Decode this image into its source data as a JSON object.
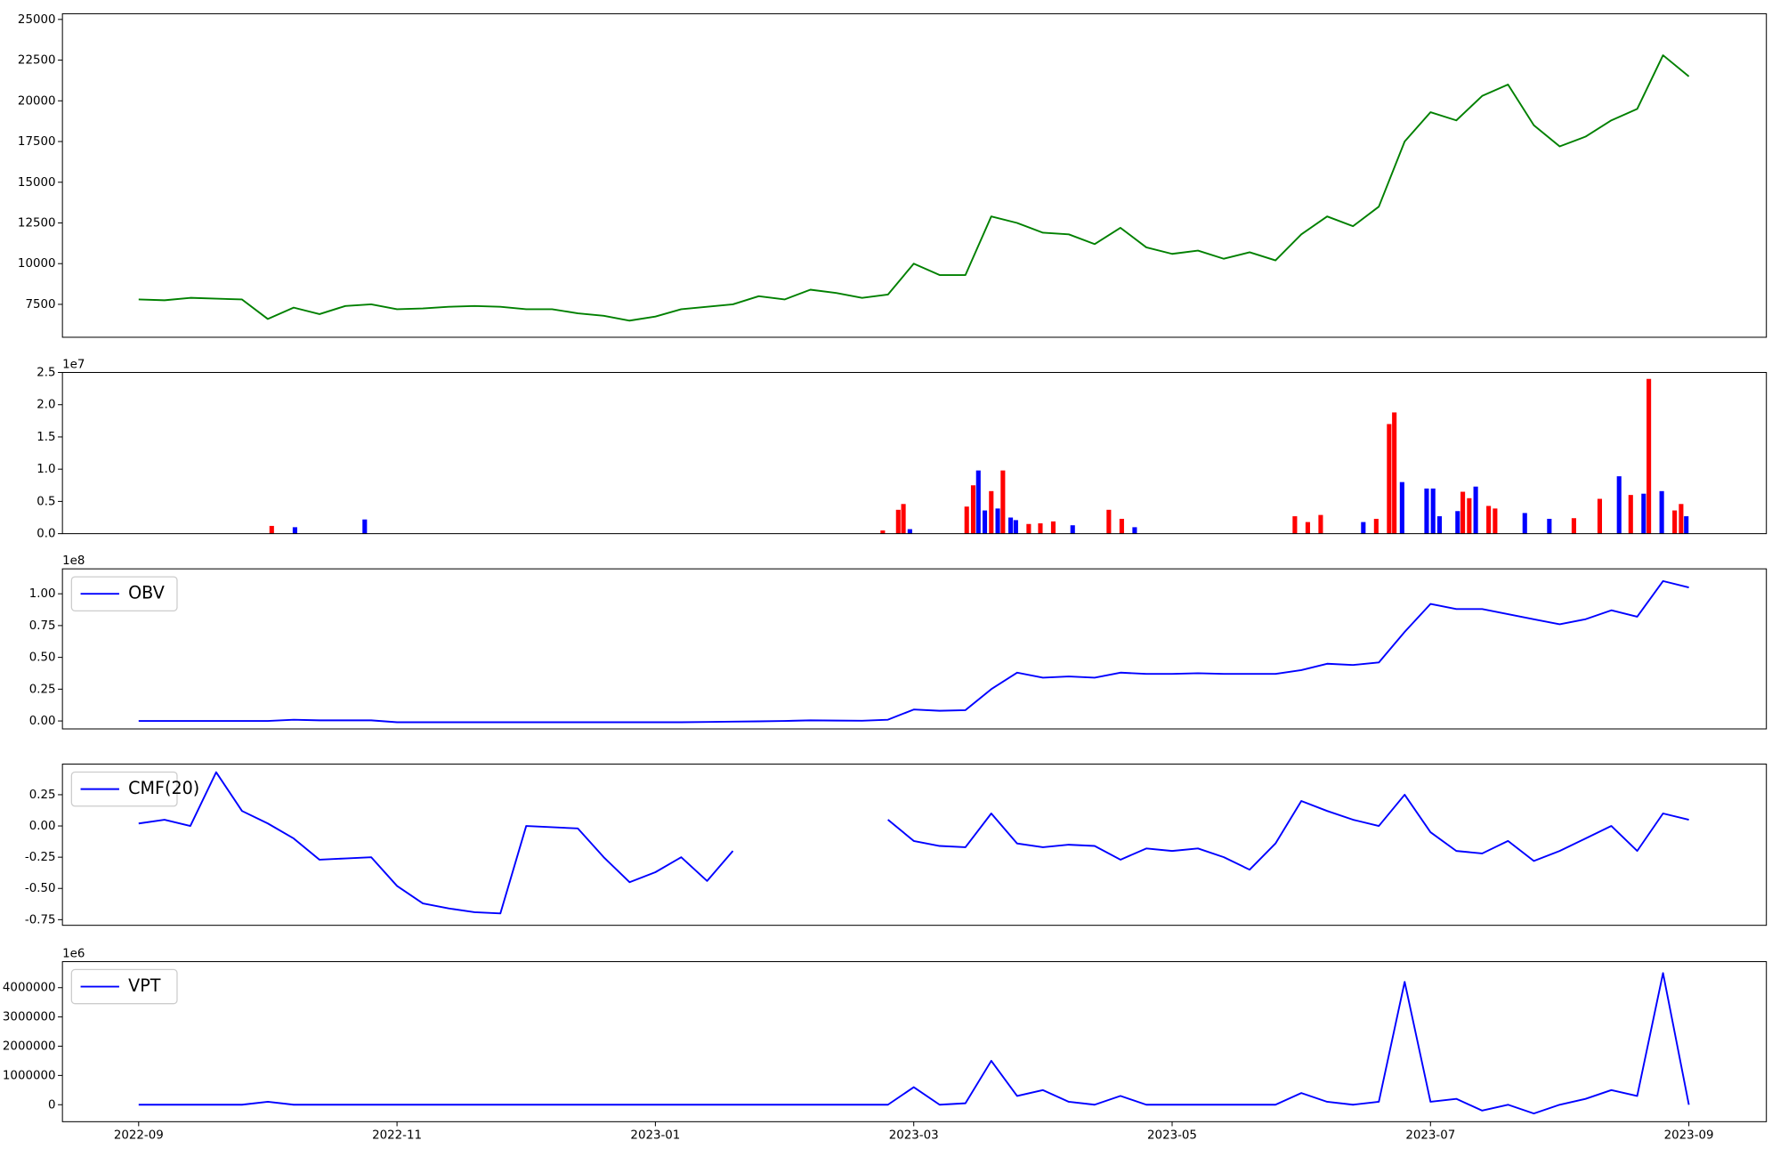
{
  "chart_data": [
    {
      "type": "line",
      "color": "#008000",
      "x": [
        0,
        0.2,
        0.4,
        0.6,
        0.8,
        1,
        1.2,
        1.4,
        1.6,
        1.8,
        2,
        2.2,
        2.4,
        2.6,
        2.8,
        3,
        3.2,
        3.4,
        3.6,
        3.8,
        4,
        4.2,
        4.4,
        4.6,
        4.8,
        5,
        5.2,
        5.4,
        5.6,
        5.8,
        6,
        6.2,
        6.4,
        6.6,
        6.8,
        7,
        7.2,
        7.4,
        7.6,
        7.8,
        8,
        8.2,
        8.4,
        8.6,
        8.8,
        9,
        9.2,
        9.4,
        9.6,
        9.8,
        10,
        10.2,
        10.4,
        10.6,
        10.8,
        11,
        11.2,
        11.4,
        11.6,
        11.8,
        12
      ],
      "series": [
        {
          "color": "#008000",
          "values": [
            7800,
            7750,
            7900,
            7850,
            7800,
            6600,
            7300,
            6900,
            7400,
            7500,
            7200,
            7250,
            7350,
            7400,
            7350,
            7200,
            7200,
            6950,
            6800,
            6500,
            6750,
            7200,
            7350,
            7500,
            8000,
            7800,
            8400,
            8200,
            7900,
            8100,
            10000,
            9300,
            9300,
            12900,
            12500,
            11900,
            11800,
            11200,
            12200,
            11000,
            10600,
            10800,
            10300,
            10700,
            10200,
            11800,
            12900,
            12300,
            13500,
            17500,
            19300,
            18800,
            20300,
            21000,
            18500,
            17200,
            17800,
            18800,
            19500,
            22800,
            21500
          ]
        }
      ],
      "xlim": [
        -0.59,
        12.6
      ],
      "ylim": [
        5478,
        25349
      ],
      "yticks": [
        7500,
        10000,
        12500,
        15000,
        17500,
        20000,
        22500,
        25000
      ]
    },
    {
      "type": "bar",
      "x": [
        1.03,
        1.21,
        1.75,
        5.76,
        5.88,
        5.92,
        5.97,
        6.41,
        6.46,
        6.5,
        6.55,
        6.6,
        6.65,
        6.69,
        6.75,
        6.79,
        6.89,
        6.98,
        7.08,
        7.23,
        7.51,
        7.61,
        7.71,
        8.95,
        9.05,
        9.15,
        9.48,
        9.58,
        9.68,
        9.72,
        9.78,
        9.97,
        10.02,
        10.07,
        10.21,
        10.25,
        10.3,
        10.35,
        10.45,
        10.5,
        10.73,
        10.92,
        11.11,
        11.31,
        11.46,
        11.55,
        11.65,
        11.69,
        11.79,
        11.89,
        11.94,
        11.98
      ],
      "values": [
        1200000,
        1000000,
        2200000,
        500000,
        3700000,
        4600000,
        700000,
        4200000,
        7500000,
        9800000,
        3600000,
        6600000,
        3900000,
        9800000,
        2500000,
        2100000,
        1500000,
        1600000,
        1900000,
        1300000,
        3700000,
        2300000,
        1000000,
        2700000,
        1800000,
        2900000,
        1800000,
        2300000,
        17000000,
        18800000,
        8000000,
        7000000,
        7000000,
        2700000,
        3500000,
        6500000,
        5500000,
        7300000,
        4300000,
        3900000,
        3200000,
        2300000,
        2400000,
        5400000,
        8900000,
        6000000,
        6200000,
        24000000,
        6600000,
        3600000,
        4600000,
        2700000
      ],
      "colors": [
        "#ff0000",
        "#0000ff",
        "#0000ff",
        "#ff0000",
        "#ff0000",
        "#ff0000",
        "#0000ff",
        "#ff0000",
        "#ff0000",
        "#0000ff",
        "#0000ff",
        "#ff0000",
        "#0000ff",
        "#ff0000",
        "#0000ff",
        "#0000ff",
        "#ff0000",
        "#ff0000",
        "#ff0000",
        "#0000ff",
        "#ff0000",
        "#ff0000",
        "#0000ff",
        "#ff0000",
        "#ff0000",
        "#ff0000",
        "#0000ff",
        "#ff0000",
        "#ff0000",
        "#ff0000",
        "#0000ff",
        "#0000ff",
        "#0000ff",
        "#0000ff",
        "#0000ff",
        "#ff0000",
        "#ff0000",
        "#0000ff",
        "#ff0000",
        "#ff0000",
        "#0000ff",
        "#0000ff",
        "#ff0000",
        "#ff0000",
        "#0000ff",
        "#ff0000",
        "#0000ff",
        "#ff0000",
        "#0000ff",
        "#ff0000",
        "#ff0000",
        "#0000ff"
      ],
      "xlim": [
        -0.59,
        12.6
      ],
      "ylim": [
        0,
        25000000
      ],
      "y_offset_label": "1e7",
      "yticks": [
        {
          "value": 0,
          "label": "0.0"
        },
        {
          "value": 5000000,
          "label": "0.5"
        },
        {
          "value": 10000000,
          "label": "1.0"
        },
        {
          "value": 15000000,
          "label": "1.5"
        },
        {
          "value": 20000000,
          "label": "2.0"
        },
        {
          "value": 25000000,
          "label": "2.5"
        }
      ]
    },
    {
      "type": "line",
      "legend": "upper left",
      "x": [
        0,
        0.2,
        0.4,
        0.6,
        0.8,
        1,
        1.2,
        1.4,
        1.6,
        1.8,
        2,
        2.2,
        2.4,
        2.6,
        2.8,
        3,
        3.2,
        3.4,
        3.6,
        3.8,
        4,
        4.2,
        4.4,
        4.6,
        4.8,
        5,
        5.2,
        5.4,
        5.6,
        5.8,
        6,
        6.2,
        6.4,
        6.6,
        6.8,
        7,
        7.2,
        7.4,
        7.6,
        7.8,
        8,
        8.2,
        8.4,
        8.6,
        8.8,
        9,
        9.2,
        9.4,
        9.6,
        9.8,
        10,
        10.2,
        10.4,
        10.6,
        10.8,
        11,
        11.2,
        11.4,
        11.6,
        11.8,
        12
      ],
      "series": [
        {
          "name": "OBV",
          "color": "#0000ff",
          "values": [
            0,
            0,
            0,
            0,
            0,
            0,
            1000000,
            500000,
            500000,
            500000,
            -1000000,
            -1000000,
            -1000000,
            -1000000,
            -1000000,
            -1000000,
            -1000000,
            -1000000,
            -1000000,
            -1000000,
            -1000000,
            -1000000,
            -800000,
            -500000,
            -300000,
            0,
            500000,
            300000,
            200000,
            1000000,
            9000000,
            8000000,
            8500000,
            25000000,
            38000000,
            34000000,
            35000000,
            34000000,
            38000000,
            37000000,
            37000000,
            37500000,
            37000000,
            37000000,
            37000000,
            40000000,
            45000000,
            44000000,
            46000000,
            70000000,
            92000000,
            88000000,
            88000000,
            84000000,
            80000000,
            76000000,
            80000000,
            87000000,
            82000000,
            110000000,
            105000000
          ]
        }
      ],
      "xlim": [
        -0.59,
        12.6
      ],
      "ylim": [
        -6250000,
        119600000
      ],
      "y_offset_label": "1e8",
      "yticks": [
        {
          "value": 0,
          "label": "0.00"
        },
        {
          "value": 25000000,
          "label": "0.25"
        },
        {
          "value": 50000000,
          "label": "0.50"
        },
        {
          "value": 75000000,
          "label": "0.75"
        },
        {
          "value": 100000000,
          "label": "1.00"
        }
      ]
    },
    {
      "type": "line",
      "legend": "upper left",
      "x": [
        0,
        0.2,
        0.4,
        0.6,
        0.8,
        1,
        1.2,
        1.4,
        1.6,
        1.8,
        2,
        2.2,
        2.4,
        2.6,
        2.8,
        3,
        3.2,
        3.4,
        3.6,
        3.8,
        4,
        4.2,
        4.4,
        4.6,
        4.8,
        5,
        5.2,
        5.4,
        5.6,
        5.8,
        6,
        6.2,
        6.4,
        6.6,
        6.8,
        7,
        7.2,
        7.4,
        7.6,
        7.8,
        8,
        8.2,
        8.4,
        8.6,
        8.8,
        9,
        9.2,
        9.4,
        9.6,
        9.8,
        10,
        10.2,
        10.4,
        10.6,
        10.8,
        11,
        11.2,
        11.4,
        11.6,
        11.8,
        12
      ],
      "series": [
        {
          "name": "CMF(20)",
          "color": "#0000ff",
          "values": [
            0.02,
            0.05,
            0.0,
            0.43,
            0.12,
            0.02,
            -0.1,
            -0.27,
            -0.26,
            -0.25,
            -0.48,
            -0.62,
            -0.66,
            -0.69,
            -0.7,
            0.0,
            -0.01,
            -0.02,
            -0.25,
            -0.45,
            -0.37,
            -0.25,
            -0.44,
            -0.2,
            null,
            null,
            null,
            null,
            null,
            0.05,
            -0.12,
            -0.16,
            -0.17,
            0.1,
            -0.14,
            -0.17,
            -0.15,
            -0.16,
            -0.27,
            -0.18,
            -0.2,
            -0.18,
            -0.25,
            -0.35,
            -0.14,
            0.2,
            0.12,
            0.05,
            0.0,
            0.25,
            -0.05,
            -0.2,
            -0.22,
            -0.12,
            -0.28,
            -0.2,
            -0.1,
            0.0,
            -0.2,
            0.1,
            0.05
          ]
        }
      ],
      "xlim": [
        -0.59,
        12.6
      ],
      "ylim": [
        -0.795,
        0.495
      ],
      "yticks": [
        -0.75,
        {
          "value": -0.5,
          "label": "-0.50"
        },
        -0.25,
        {
          "value": 0,
          "label": "0.00"
        },
        0.25
      ]
    },
    {
      "type": "line",
      "legend": "upper left",
      "x": [
        0,
        0.2,
        0.4,
        0.6,
        0.8,
        1,
        1.2,
        1.4,
        1.6,
        1.8,
        2,
        2.2,
        2.4,
        2.6,
        2.8,
        3,
        3.2,
        3.4,
        3.6,
        3.8,
        4,
        4.2,
        4.4,
        4.6,
        4.8,
        5,
        5.2,
        5.4,
        5.6,
        5.8,
        6,
        6.2,
        6.4,
        6.6,
        6.8,
        7,
        7.2,
        7.4,
        7.6,
        7.8,
        8,
        8.2,
        8.4,
        8.6,
        8.8,
        9,
        9.2,
        9.4,
        9.6,
        9.8,
        10,
        10.2,
        10.4,
        10.6,
        10.8,
        11,
        11.2,
        11.4,
        11.6,
        11.8,
        12
      ],
      "series": [
        {
          "name": "VPT",
          "color": "#0000ff",
          "values": [
            0,
            0,
            0,
            0,
            0,
            100000,
            0,
            0,
            0,
            0,
            0,
            0,
            0,
            0,
            0,
            0,
            0,
            0,
            0,
            0,
            0,
            0,
            0,
            0,
            0,
            0,
            0,
            0,
            0,
            0,
            600000,
            0,
            50000,
            1500000,
            300000,
            500000,
            100000,
            0,
            300000,
            0,
            0,
            0,
            0,
            0,
            0,
            400000,
            100000,
            0,
            100000,
            4200000,
            100000,
            200000,
            -200000,
            0,
            -300000,
            0,
            200000,
            500000,
            300000,
            4500000,
            0
          ]
        }
      ],
      "xlim": [
        -0.59,
        12.6
      ],
      "ylim": [
        -580000,
        4890000
      ],
      "y_offset_label": "1e6",
      "yticks": [
        0,
        1000000,
        2000000,
        3000000,
        4000000
      ],
      "xticks": [
        {
          "value": 0,
          "label": "2022-09"
        },
        {
          "value": 2,
          "label": "2022-11"
        },
        {
          "value": 4,
          "label": "2023-01"
        },
        {
          "value": 6,
          "label": "2023-03"
        },
        {
          "value": 8,
          "label": "2023-05"
        },
        {
          "value": 10,
          "label": "2023-07"
        },
        {
          "value": 12,
          "label": "2023-09"
        }
      ]
    }
  ]
}
